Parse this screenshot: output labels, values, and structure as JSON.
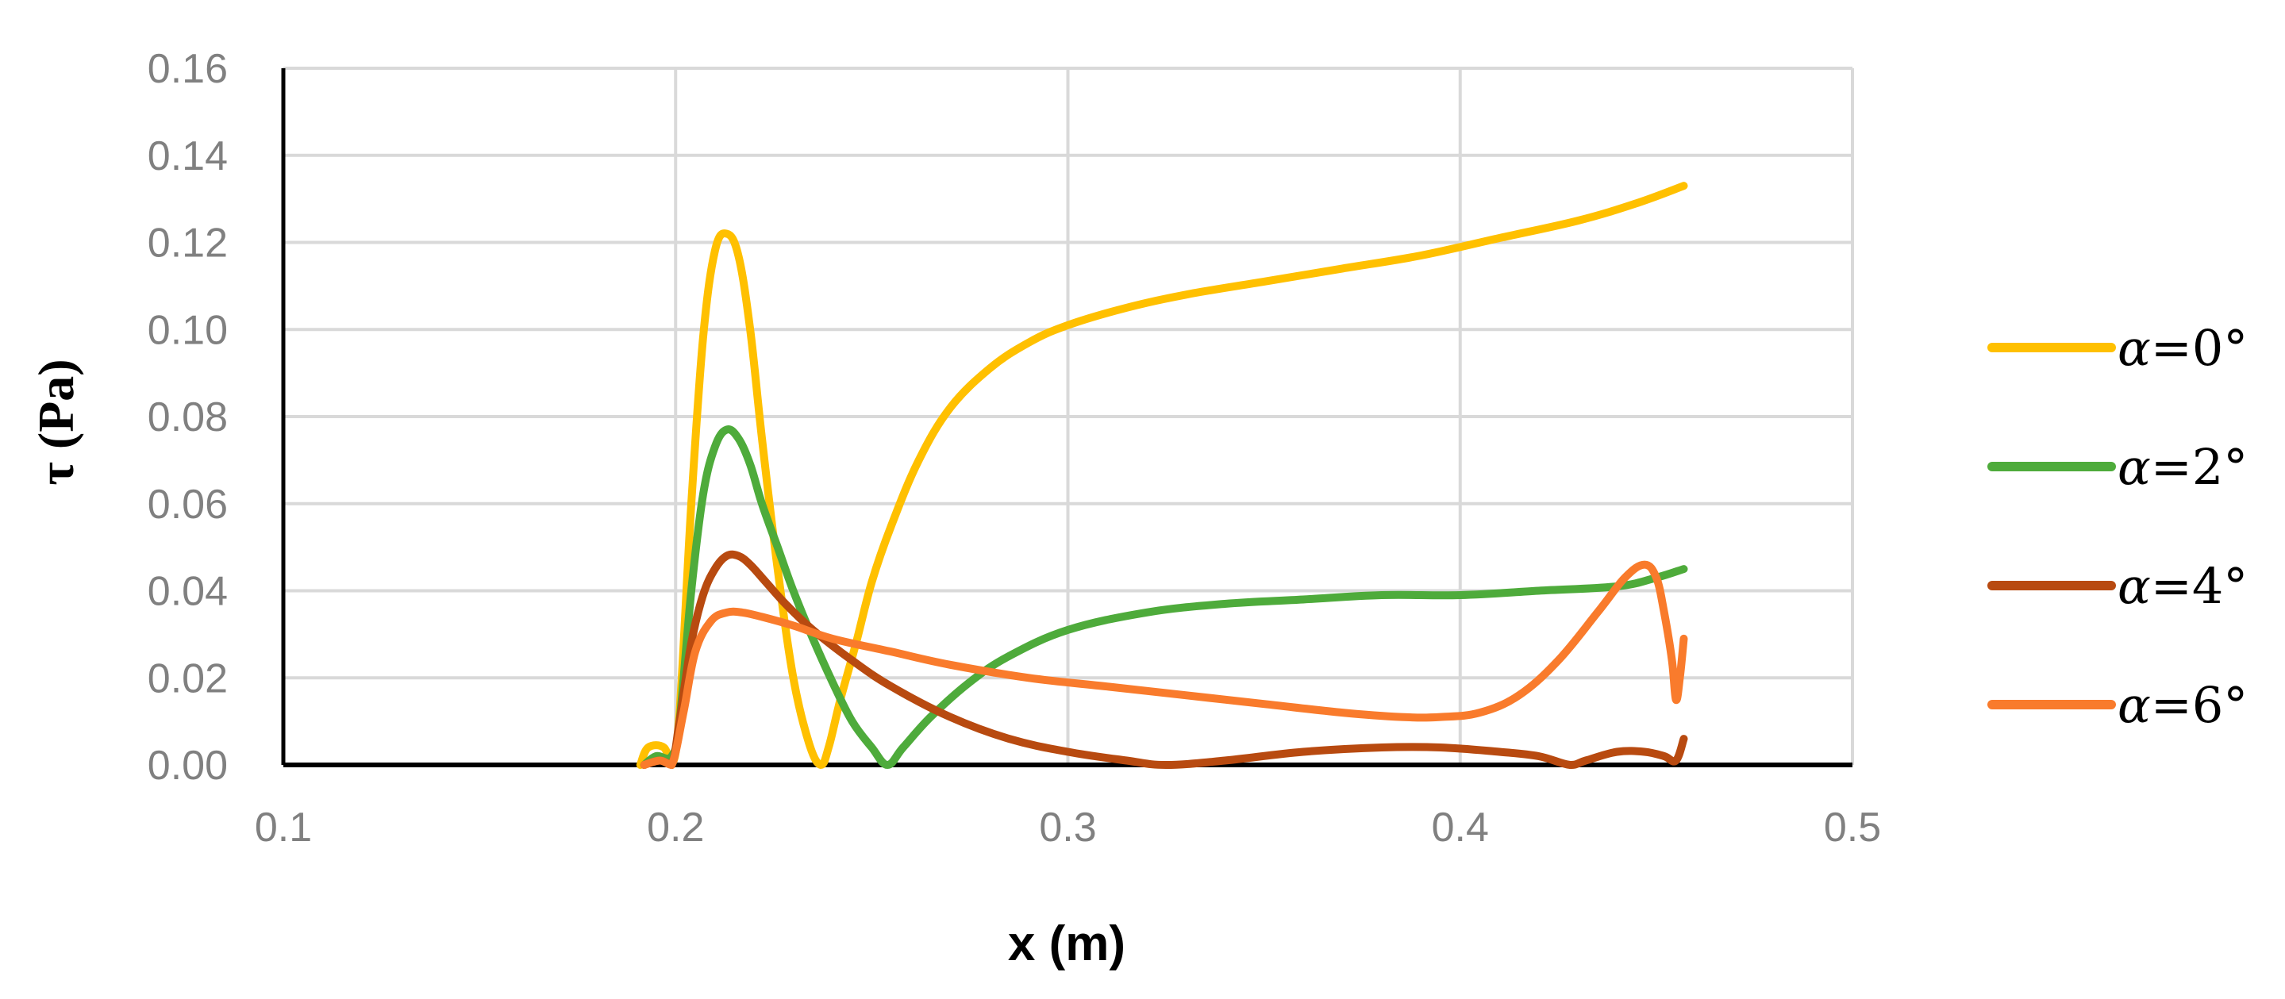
{
  "chart_data": {
    "type": "line",
    "xlabel": "x (m)",
    "ylabel": "τ (Pa)",
    "xlim": [
      0.1,
      0.5
    ],
    "ylim": [
      0,
      0.16
    ],
    "x_ticks": [
      "0.1",
      "0.2",
      "0.3",
      "0.4",
      "0.5"
    ],
    "y_ticks": [
      "0.00",
      "0.02",
      "0.04",
      "0.06",
      "0.08",
      "0.10",
      "0.12",
      "0.14",
      "0.16"
    ],
    "grid": true,
    "legend_position": "right",
    "series": [
      {
        "name": "α=0°",
        "legend_symbol": "α",
        "legend_value": "=0°",
        "color": "#FFC000",
        "x": [
          0.191,
          0.193,
          0.197,
          0.199,
          0.201,
          0.204,
          0.207,
          0.21,
          0.213,
          0.216,
          0.219,
          0.222,
          0.226,
          0.23,
          0.234,
          0.237,
          0.239,
          0.242,
          0.246,
          0.25,
          0.255,
          0.262,
          0.27,
          0.28,
          0.29,
          0.3,
          0.315,
          0.33,
          0.35,
          0.37,
          0.39,
          0.41,
          0.43,
          0.445,
          0.457
        ],
        "y": [
          0.0,
          0.004,
          0.004,
          0.0,
          0.012,
          0.06,
          0.098,
          0.118,
          0.122,
          0.117,
          0.1,
          0.075,
          0.045,
          0.02,
          0.005,
          0.0,
          0.004,
          0.015,
          0.028,
          0.042,
          0.055,
          0.07,
          0.082,
          0.091,
          0.097,
          0.101,
          0.105,
          0.108,
          0.111,
          0.114,
          0.117,
          0.121,
          0.125,
          0.129,
          0.133
        ]
      },
      {
        "name": "α=2°",
        "legend_symbol": "α",
        "legend_value": "=2°",
        "color": "#4EAB3B",
        "x": [
          0.192,
          0.195,
          0.199,
          0.201,
          0.204,
          0.207,
          0.21,
          0.213,
          0.216,
          0.219,
          0.222,
          0.226,
          0.23,
          0.235,
          0.24,
          0.245,
          0.25,
          0.254,
          0.258,
          0.265,
          0.275,
          0.285,
          0.3,
          0.32,
          0.34,
          0.36,
          0.38,
          0.4,
          0.42,
          0.44,
          0.45,
          0.457
        ],
        "y": [
          0.0,
          0.002,
          0.002,
          0.01,
          0.04,
          0.062,
          0.073,
          0.077,
          0.075,
          0.069,
          0.06,
          0.05,
          0.04,
          0.029,
          0.019,
          0.01,
          0.004,
          0.0,
          0.004,
          0.011,
          0.019,
          0.025,
          0.031,
          0.035,
          0.037,
          0.038,
          0.039,
          0.039,
          0.04,
          0.041,
          0.043,
          0.045
        ]
      },
      {
        "name": "α=4°",
        "legend_symbol": "α",
        "legend_value": "=4°",
        "color": "#B84A10",
        "x": [
          0.192,
          0.196,
          0.199,
          0.201,
          0.204,
          0.207,
          0.21,
          0.213,
          0.216,
          0.219,
          0.223,
          0.228,
          0.235,
          0.245,
          0.255,
          0.27,
          0.285,
          0.3,
          0.315,
          0.325,
          0.34,
          0.36,
          0.38,
          0.395,
          0.41,
          0.42,
          0.428,
          0.432,
          0.44,
          0.447,
          0.452,
          0.455,
          0.457
        ],
        "y": [
          0.0,
          0.001,
          0.0,
          0.01,
          0.028,
          0.039,
          0.045,
          0.048,
          0.048,
          0.046,
          0.042,
          0.037,
          0.031,
          0.024,
          0.018,
          0.011,
          0.006,
          0.003,
          0.001,
          0.0,
          0.001,
          0.003,
          0.004,
          0.004,
          0.003,
          0.002,
          0.0,
          0.001,
          0.003,
          0.003,
          0.002,
          0.001,
          0.006
        ]
      },
      {
        "name": "α=6°",
        "legend_symbol": "α",
        "legend_value": "=6°",
        "color": "#F97B2C",
        "x": [
          0.192,
          0.196,
          0.199,
          0.202,
          0.205,
          0.209,
          0.213,
          0.217,
          0.222,
          0.23,
          0.24,
          0.255,
          0.27,
          0.29,
          0.31,
          0.33,
          0.35,
          0.37,
          0.385,
          0.395,
          0.405,
          0.415,
          0.425,
          0.435,
          0.442,
          0.447,
          0.45,
          0.452,
          0.454,
          0.455,
          0.456,
          0.457
        ],
        "y": [
          0.0,
          0.001,
          0.0,
          0.012,
          0.026,
          0.033,
          0.035,
          0.035,
          0.034,
          0.032,
          0.029,
          0.026,
          0.023,
          0.02,
          0.018,
          0.016,
          0.014,
          0.012,
          0.011,
          0.011,
          0.012,
          0.016,
          0.024,
          0.035,
          0.043,
          0.046,
          0.043,
          0.035,
          0.024,
          0.015,
          0.02,
          0.029
        ]
      }
    ]
  }
}
